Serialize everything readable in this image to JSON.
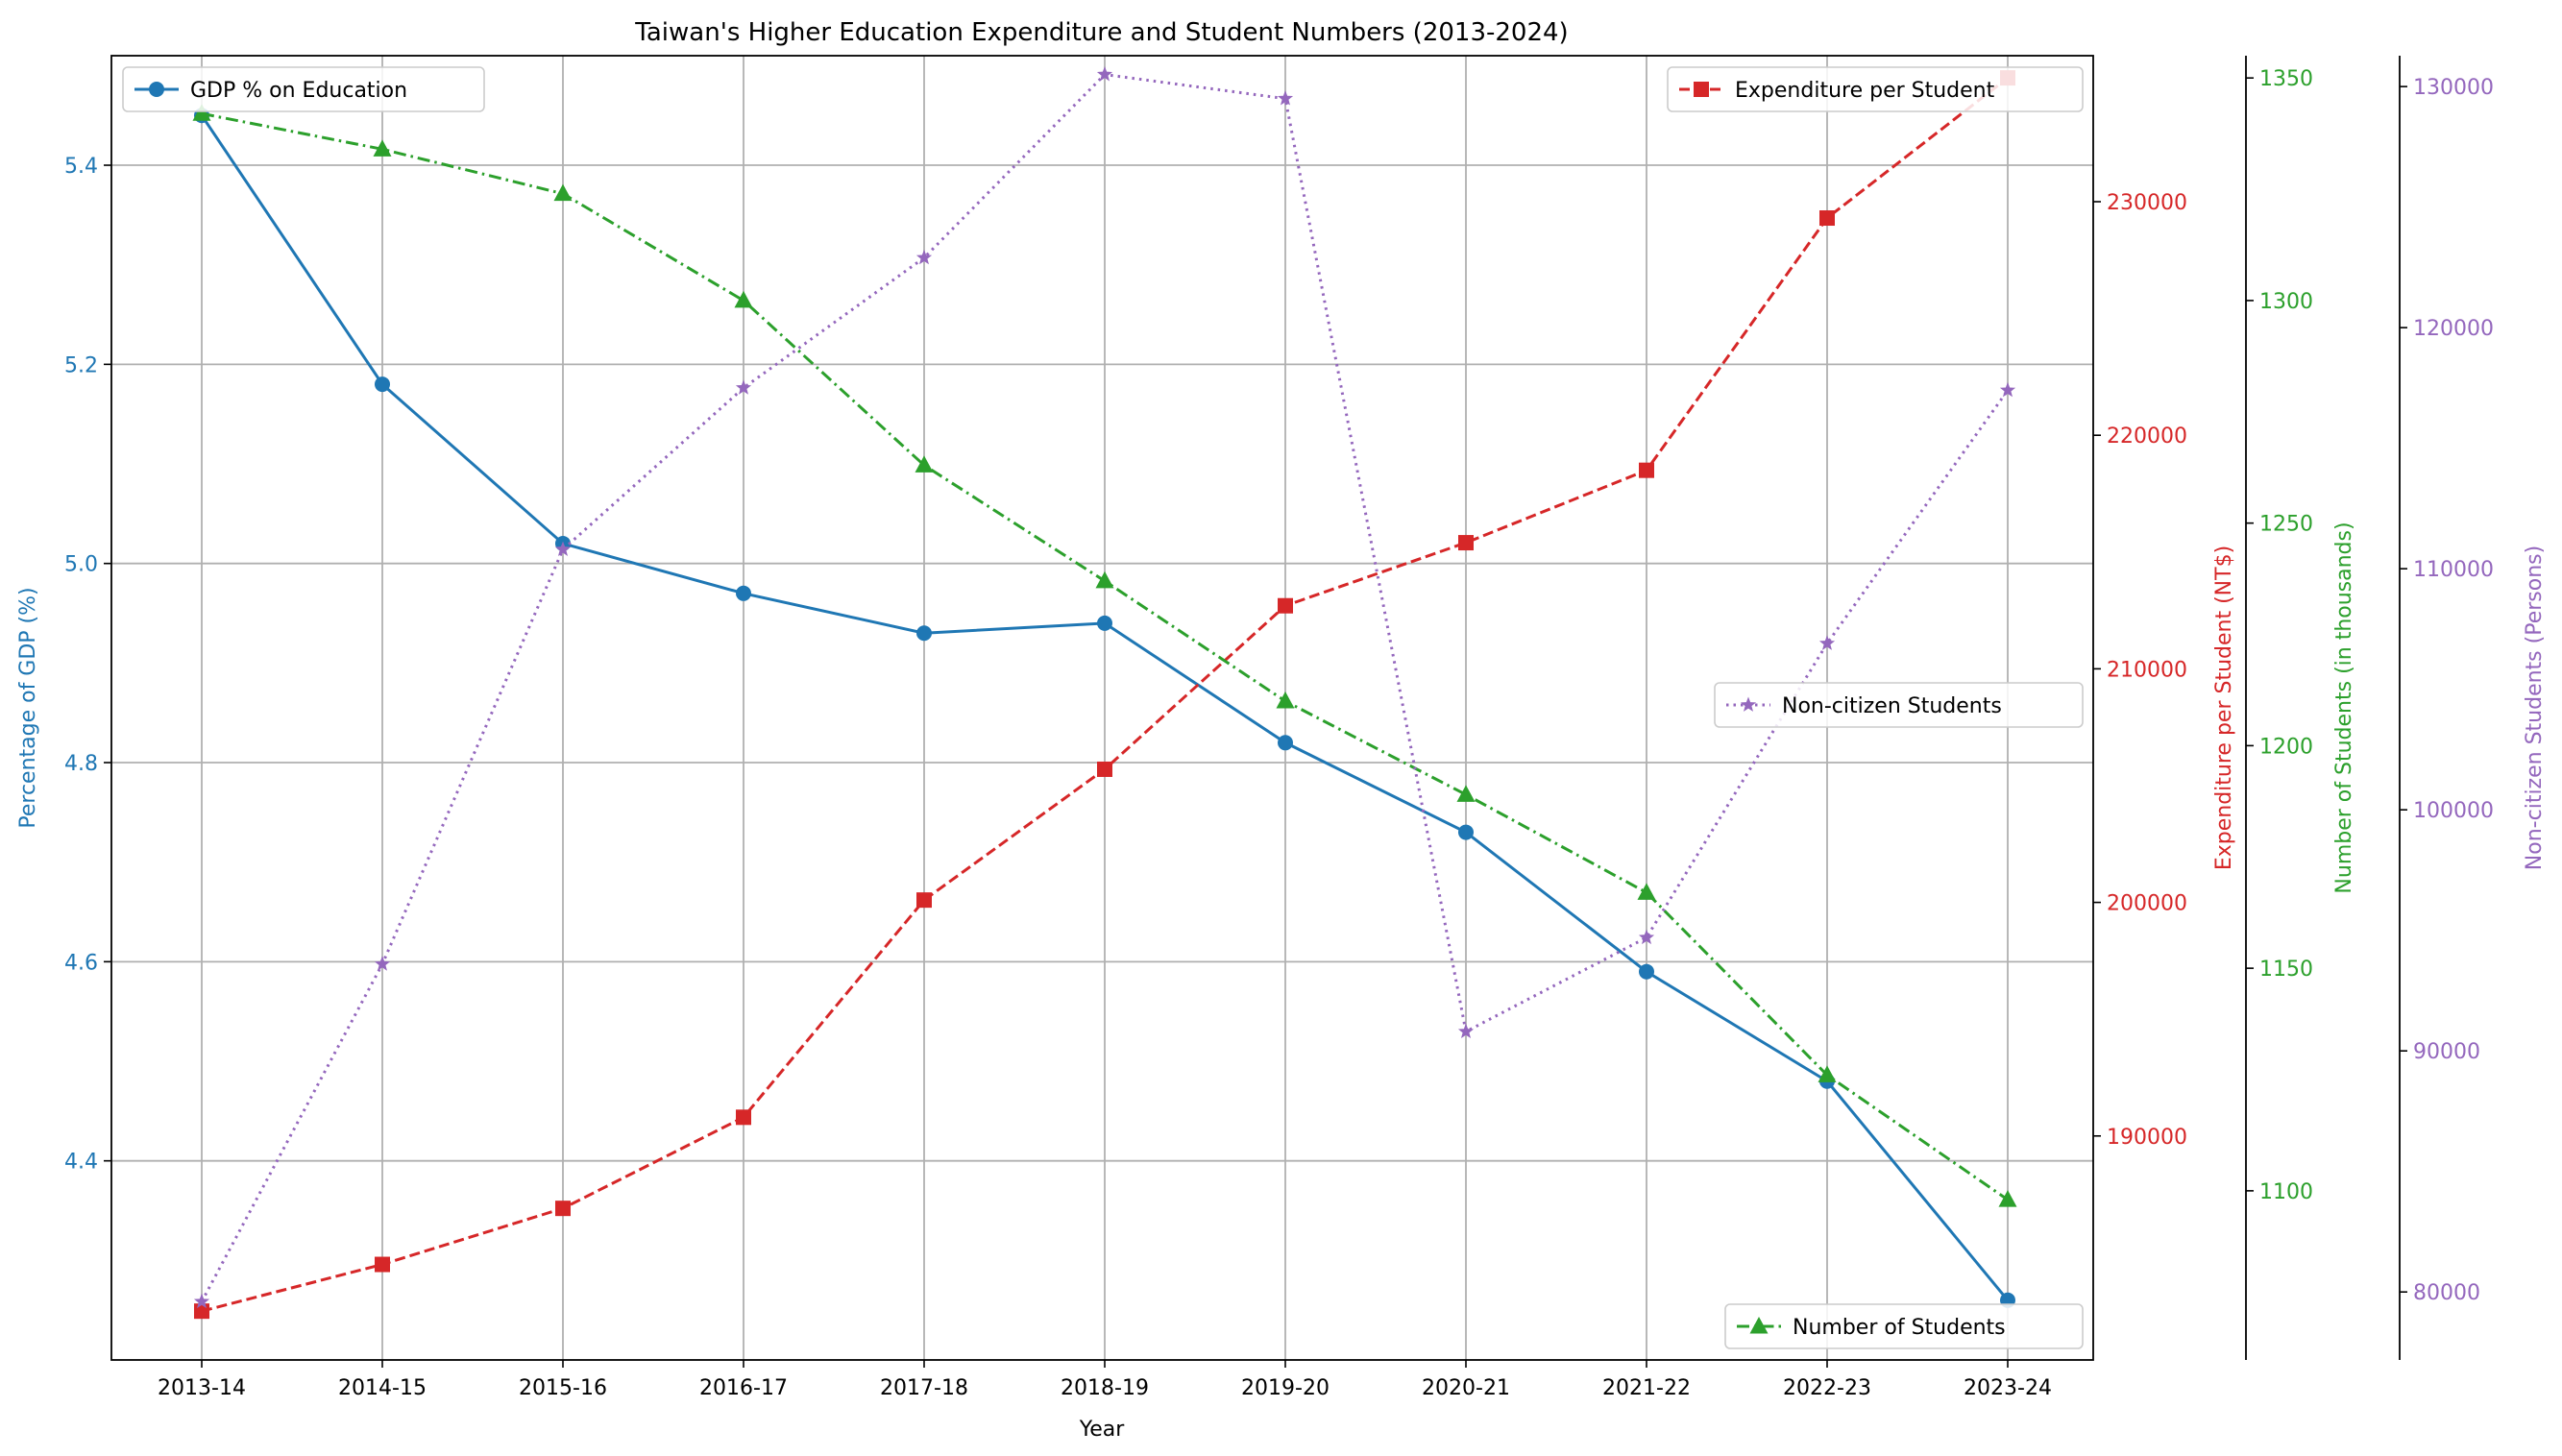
{
  "chart_data": {
    "type": "line",
    "title": "Taiwan's Higher Education Expenditure and Student Numbers (2013-2024)",
    "xlabel": "Year",
    "categories": [
      "2013-14",
      "2014-15",
      "2015-16",
      "2016-17",
      "2017-18",
      "2018-19",
      "2019-20",
      "2020-21",
      "2021-22",
      "2022-23",
      "2023-24"
    ],
    "grid": true,
    "axes": [
      {
        "id": "gdp",
        "label": "Percentage of GDP (%)",
        "side": "left",
        "color": "#1f77b4",
        "ylim": [
          4.2,
          5.51
        ],
        "ticks": [
          4.4,
          4.6,
          4.8,
          5.0,
          5.2,
          5.4
        ],
        "tick_labels": [
          "4.4",
          "4.6",
          "4.8",
          "5.0",
          "5.2",
          "5.4"
        ]
      },
      {
        "id": "exp",
        "label": "Expenditure per Student (NT$)",
        "side": "right",
        "color": "#d62728",
        "ylim": [
          180410,
          236250
        ],
        "ticks": [
          190000,
          200000,
          210000,
          220000,
          230000
        ],
        "tick_labels": [
          "190000",
          "200000",
          "210000",
          "220000",
          "230000"
        ]
      },
      {
        "id": "num",
        "label": "Number of Students (in thousands)",
        "side": "right",
        "color": "#2ca02c",
        "ylim": [
          1062,
          1355
        ],
        "ticks": [
          1100,
          1150,
          1200,
          1250,
          1300,
          1350
        ],
        "tick_labels": [
          "1100",
          "1150",
          "1200",
          "1250",
          "1300",
          "1350"
        ]
      },
      {
        "id": "nc",
        "label": "Non-citizen Students (Persons)",
        "side": "right",
        "color": "#9467bd",
        "ylim": [
          77180,
          131280
        ],
        "ticks": [
          80000,
          90000,
          100000,
          110000,
          120000,
          130000
        ],
        "tick_labels": [
          "80000",
          "90000",
          "100000",
          "110000",
          "120000",
          "130000"
        ]
      }
    ],
    "series": [
      {
        "name": "GDP % on Education",
        "axis": "gdp",
        "color": "#1f77b4",
        "marker": "circle",
        "dash": "solid",
        "values": [
          5.45,
          5.18,
          5.02,
          4.97,
          4.93,
          4.94,
          4.82,
          4.73,
          4.59,
          4.48,
          4.26
        ]
      },
      {
        "name": "Expenditure per Student",
        "axis": "exp",
        "color": "#d62728",
        "marker": "square",
        "dash": "dashed",
        "values": [
          182500,
          184500,
          186900,
          190800,
          200100,
          205700,
          212700,
          215400,
          218500,
          229300,
          235300
        ]
      },
      {
        "name": "Number of Students",
        "axis": "num",
        "color": "#2ca02c",
        "marker": "triangle",
        "dash": "dashdot",
        "values": [
          1342,
          1334,
          1324,
          1300,
          1263,
          1237,
          1210,
          1189,
          1167,
          1126,
          1098
        ]
      },
      {
        "name": "Non-citizen Students",
        "axis": "nc",
        "color": "#9467bd",
        "marker": "star",
        "dash": "dotted",
        "values": [
          79600,
          93600,
          110800,
          117500,
          122900,
          130500,
          129500,
          90800,
          94700,
          106900,
          117400
        ]
      }
    ],
    "legends": [
      {
        "series": "GDP % on Education",
        "placement": "upper-left"
      },
      {
        "series": "Expenditure per Student",
        "placement": "upper-right"
      },
      {
        "series": "Non-citizen Students",
        "placement": "center-right"
      },
      {
        "series": "Number of Students",
        "placement": "lower-right"
      }
    ]
  }
}
